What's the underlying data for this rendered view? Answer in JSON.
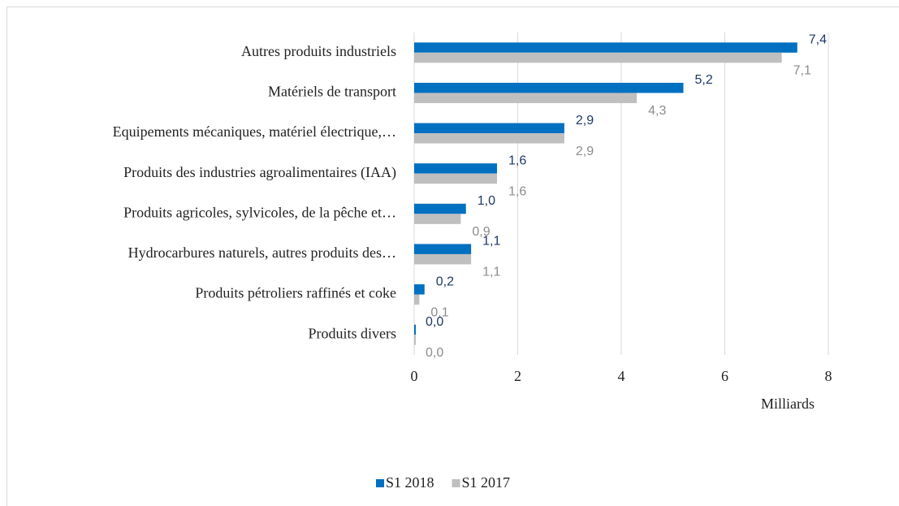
{
  "chart_data": {
    "type": "hbar",
    "categories": [
      "Autres produits industriels",
      "Matériels de transport",
      "Equipements mécaniques, matériel électrique,…",
      "Produits des industries agroalimentaires (IAA)",
      "Produits agricoles, sylvicoles, de la pêche et…",
      "Hydrocarbures naturels, autres produits des…",
      "Produits pétroliers raffinés et coke",
      "Produits divers"
    ],
    "series": [
      {
        "name": "S1 2018",
        "color": "#0070c0",
        "label_color": "#1f3864",
        "values": [
          7.4,
          5.2,
          2.9,
          1.6,
          1.0,
          1.1,
          0.2,
          0.0
        ],
        "value_labels": [
          "7,4",
          "5,2",
          "2,9",
          "1,6",
          "1,0",
          "1,1",
          "0,2",
          "0,0"
        ]
      },
      {
        "name": "S1 2017",
        "color": "#bfbfbf",
        "label_color": "#8c8c8c",
        "values": [
          7.1,
          4.3,
          2.9,
          1.6,
          0.9,
          1.1,
          0.1,
          0.0
        ],
        "value_labels": [
          "7,1",
          "4,3",
          "2,9",
          "1,6",
          "0,9",
          "1,1",
          "0,1",
          "0,0"
        ]
      }
    ],
    "xlabel": "Milliards",
    "xlim": [
      0,
      8
    ],
    "xticks": [
      0,
      2,
      4,
      6,
      8
    ],
    "grid": true,
    "legend": "bottom"
  }
}
